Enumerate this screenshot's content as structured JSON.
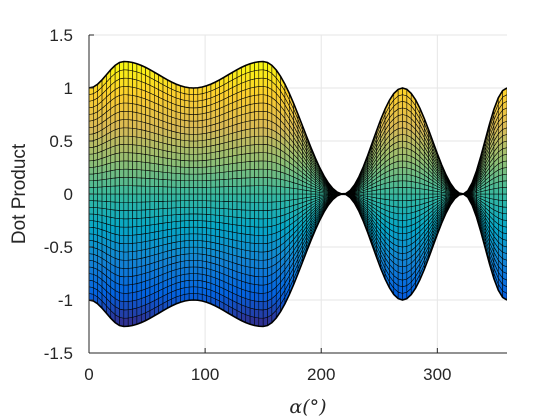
{
  "chart_data": {
    "type": "surface",
    "xlabel": "α(°)",
    "ylabel": "Dot Product",
    "xlim": [
      0,
      360
    ],
    "ylim": [
      -1.5,
      1.5
    ],
    "x_ticks": [
      0,
      100,
      200,
      300
    ],
    "y_ticks": [
      -1.5,
      -1,
      -0.5,
      0,
      0.5,
      1,
      1.5
    ],
    "y_tick_labels": [
      "-1.5",
      "-1",
      "-0.5",
      "0",
      "0.5",
      "1",
      "1.5"
    ],
    "grid": true,
    "colormap": "parula",
    "upper_envelope": {
      "x": [
        0,
        30,
        90,
        150,
        219,
        270,
        322,
        360
      ],
      "y": [
        1.0,
        1.25,
        1.0,
        1.25,
        0.0,
        1.0,
        0.0,
        1.0
      ]
    },
    "lower_envelope": {
      "x": [
        0,
        30,
        90,
        150,
        219,
        270,
        322,
        360
      ],
      "y": [
        -1.0,
        -1.25,
        -1.0,
        -1.25,
        0.0,
        -1.0,
        0.0,
        -1.0
      ]
    },
    "zero_crossings": [
      219,
      322
    ]
  },
  "colors": {
    "axis": "#262626",
    "grid": "#e6e6e6",
    "mesh": "#000000",
    "colormap_stops": [
      "#352a87",
      "#0363e1",
      "#1485d4",
      "#06a7c6",
      "#38b99e",
      "#92bf73",
      "#d9ba56",
      "#fcce2e",
      "#f9fb0e"
    ]
  }
}
